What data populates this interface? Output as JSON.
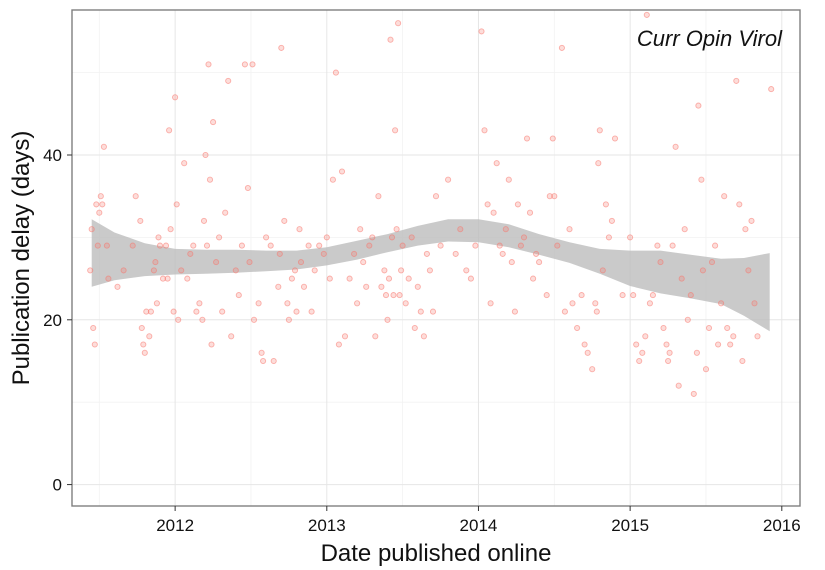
{
  "chart_data": {
    "type": "scatter",
    "annotation": "Curr Opin Virol",
    "xlabel": "Date published online",
    "ylabel": "Publication delay (days)",
    "xlim": [
      2011.32,
      2016.12
    ],
    "ylim": [
      -2.6,
      57.6
    ],
    "x_ticks": [
      2012,
      2013,
      2014,
      2015,
      2016
    ],
    "y_ticks": [
      0,
      20,
      40
    ],
    "grid": true,
    "point_color": "#f8766d",
    "band_color": "#bdbdbd",
    "smooth_band": [
      {
        "x": 2011.45,
        "lo": 24.0,
        "hi": 32.2
      },
      {
        "x": 2011.6,
        "lo": 24.8,
        "hi": 30.6
      },
      {
        "x": 2011.8,
        "lo": 25.3,
        "hi": 29.3
      },
      {
        "x": 2012.0,
        "lo": 25.5,
        "hi": 28.6
      },
      {
        "x": 2012.2,
        "lo": 25.6,
        "hi": 28.5
      },
      {
        "x": 2012.4,
        "lo": 25.7,
        "hi": 28.5
      },
      {
        "x": 2012.6,
        "lo": 25.9,
        "hi": 28.4
      },
      {
        "x": 2012.8,
        "lo": 26.1,
        "hi": 28.4
      },
      {
        "x": 2013.0,
        "lo": 26.6,
        "hi": 28.8
      },
      {
        "x": 2013.2,
        "lo": 27.3,
        "hi": 29.6
      },
      {
        "x": 2013.4,
        "lo": 28.2,
        "hi": 30.4
      },
      {
        "x": 2013.6,
        "lo": 29.0,
        "hi": 31.4
      },
      {
        "x": 2013.8,
        "lo": 29.5,
        "hi": 32.2
      },
      {
        "x": 2014.0,
        "lo": 29.4,
        "hi": 32.2
      },
      {
        "x": 2014.2,
        "lo": 28.8,
        "hi": 31.6
      },
      {
        "x": 2014.4,
        "lo": 27.9,
        "hi": 30.4
      },
      {
        "x": 2014.6,
        "lo": 26.9,
        "hi": 29.4
      },
      {
        "x": 2014.8,
        "lo": 25.6,
        "hi": 28.6
      },
      {
        "x": 2015.0,
        "lo": 24.1,
        "hi": 28.4
      },
      {
        "x": 2015.2,
        "lo": 23.2,
        "hi": 28.4
      },
      {
        "x": 2015.4,
        "lo": 22.6,
        "hi": 27.9
      },
      {
        "x": 2015.6,
        "lo": 21.9,
        "hi": 27.4
      },
      {
        "x": 2015.75,
        "lo": 20.5,
        "hi": 27.5
      },
      {
        "x": 2015.92,
        "lo": 18.6,
        "hi": 28.1
      }
    ],
    "points": [
      [
        2011.44,
        26
      ],
      [
        2011.45,
        31
      ],
      [
        2011.46,
        19
      ],
      [
        2011.47,
        17
      ],
      [
        2011.48,
        34
      ],
      [
        2011.49,
        29
      ],
      [
        2011.5,
        33
      ],
      [
        2011.51,
        35
      ],
      [
        2011.52,
        34
      ],
      [
        2011.53,
        41
      ],
      [
        2011.55,
        29
      ],
      [
        2011.56,
        25
      ],
      [
        2011.62,
        24
      ],
      [
        2011.66,
        26
      ],
      [
        2011.72,
        29
      ],
      [
        2011.74,
        35
      ],
      [
        2011.77,
        32
      ],
      [
        2011.78,
        19
      ],
      [
        2011.79,
        17
      ],
      [
        2011.8,
        16
      ],
      [
        2011.81,
        21
      ],
      [
        2011.83,
        18
      ],
      [
        2011.84,
        21
      ],
      [
        2011.86,
        26
      ],
      [
        2011.87,
        27
      ],
      [
        2011.88,
        22
      ],
      [
        2011.89,
        30
      ],
      [
        2011.9,
        29
      ],
      [
        2011.92,
        25
      ],
      [
        2011.94,
        29
      ],
      [
        2011.95,
        25
      ],
      [
        2011.96,
        43
      ],
      [
        2011.97,
        31
      ],
      [
        2011.99,
        21
      ],
      [
        2012.0,
        47
      ],
      [
        2012.01,
        34
      ],
      [
        2012.02,
        20
      ],
      [
        2012.04,
        26
      ],
      [
        2012.06,
        39
      ],
      [
        2012.08,
        25
      ],
      [
        2012.1,
        28
      ],
      [
        2012.12,
        29
      ],
      [
        2012.14,
        21
      ],
      [
        2012.16,
        22
      ],
      [
        2012.18,
        20
      ],
      [
        2012.19,
        32
      ],
      [
        2012.2,
        40
      ],
      [
        2012.21,
        29
      ],
      [
        2012.22,
        51
      ],
      [
        2012.23,
        37
      ],
      [
        2012.24,
        17
      ],
      [
        2012.25,
        44
      ],
      [
        2012.27,
        27
      ],
      [
        2012.29,
        30
      ],
      [
        2012.31,
        21
      ],
      [
        2012.33,
        33
      ],
      [
        2012.35,
        49
      ],
      [
        2012.37,
        18
      ],
      [
        2012.4,
        26
      ],
      [
        2012.42,
        23
      ],
      [
        2012.44,
        29
      ],
      [
        2012.46,
        51
      ],
      [
        2012.48,
        36
      ],
      [
        2012.49,
        27
      ],
      [
        2012.51,
        51
      ],
      [
        2012.52,
        20
      ],
      [
        2012.55,
        22
      ],
      [
        2012.57,
        16
      ],
      [
        2012.58,
        15
      ],
      [
        2012.6,
        30
      ],
      [
        2012.63,
        29
      ],
      [
        2012.65,
        15
      ],
      [
        2012.68,
        24
      ],
      [
        2012.69,
        28
      ],
      [
        2012.7,
        53
      ],
      [
        2012.72,
        32
      ],
      [
        2012.74,
        22
      ],
      [
        2012.75,
        20
      ],
      [
        2012.77,
        25
      ],
      [
        2012.79,
        26
      ],
      [
        2012.8,
        21
      ],
      [
        2012.82,
        31
      ],
      [
        2012.83,
        27
      ],
      [
        2012.85,
        24
      ],
      [
        2012.88,
        29
      ],
      [
        2012.9,
        21
      ],
      [
        2012.92,
        26
      ],
      [
        2012.95,
        29
      ],
      [
        2012.98,
        28
      ],
      [
        2013.0,
        30
      ],
      [
        2013.02,
        25
      ],
      [
        2013.04,
        37
      ],
      [
        2013.06,
        50
      ],
      [
        2013.08,
        17
      ],
      [
        2013.1,
        38
      ],
      [
        2013.12,
        18
      ],
      [
        2013.15,
        25
      ],
      [
        2013.18,
        28
      ],
      [
        2013.2,
        22
      ],
      [
        2013.22,
        31
      ],
      [
        2013.24,
        27
      ],
      [
        2013.26,
        24
      ],
      [
        2013.28,
        29
      ],
      [
        2013.3,
        30
      ],
      [
        2013.32,
        18
      ],
      [
        2013.34,
        35
      ],
      [
        2013.36,
        24
      ],
      [
        2013.38,
        26
      ],
      [
        2013.39,
        23
      ],
      [
        2013.4,
        20
      ],
      [
        2013.41,
        25
      ],
      [
        2013.42,
        54
      ],
      [
        2013.43,
        30
      ],
      [
        2013.44,
        23
      ],
      [
        2013.45,
        43
      ],
      [
        2013.46,
        31
      ],
      [
        2013.47,
        56
      ],
      [
        2013.48,
        23
      ],
      [
        2013.49,
        26
      ],
      [
        2013.5,
        29
      ],
      [
        2013.52,
        22
      ],
      [
        2013.54,
        25
      ],
      [
        2013.56,
        30
      ],
      [
        2013.58,
        19
      ],
      [
        2013.6,
        24
      ],
      [
        2013.62,
        21
      ],
      [
        2013.64,
        18
      ],
      [
        2013.66,
        28
      ],
      [
        2013.68,
        26
      ],
      [
        2013.7,
        21
      ],
      [
        2013.72,
        35
      ],
      [
        2013.75,
        29
      ],
      [
        2013.8,
        37
      ],
      [
        2013.85,
        28
      ],
      [
        2013.88,
        31
      ],
      [
        2013.92,
        26
      ],
      [
        2013.95,
        25
      ],
      [
        2013.98,
        29
      ],
      [
        2014.02,
        55
      ],
      [
        2014.04,
        43
      ],
      [
        2014.06,
        34
      ],
      [
        2014.08,
        22
      ],
      [
        2014.1,
        33
      ],
      [
        2014.12,
        39
      ],
      [
        2014.14,
        29
      ],
      [
        2014.16,
        28
      ],
      [
        2014.18,
        31
      ],
      [
        2014.2,
        37
      ],
      [
        2014.22,
        27
      ],
      [
        2014.24,
        21
      ],
      [
        2014.26,
        34
      ],
      [
        2014.28,
        29
      ],
      [
        2014.3,
        30
      ],
      [
        2014.32,
        42
      ],
      [
        2014.34,
        33
      ],
      [
        2014.36,
        25
      ],
      [
        2014.38,
        28
      ],
      [
        2014.4,
        27
      ],
      [
        2014.45,
        23
      ],
      [
        2014.47,
        35
      ],
      [
        2014.49,
        42
      ],
      [
        2014.5,
        35
      ],
      [
        2014.52,
        29
      ],
      [
        2014.55,
        53
      ],
      [
        2014.57,
        21
      ],
      [
        2014.6,
        31
      ],
      [
        2014.62,
        22
      ],
      [
        2014.65,
        19
      ],
      [
        2014.68,
        23
      ],
      [
        2014.7,
        17
      ],
      [
        2014.72,
        16
      ],
      [
        2014.75,
        14
      ],
      [
        2014.77,
        22
      ],
      [
        2014.78,
        21
      ],
      [
        2014.79,
        39
      ],
      [
        2014.8,
        43
      ],
      [
        2014.82,
        26
      ],
      [
        2014.84,
        34
      ],
      [
        2014.86,
        30
      ],
      [
        2014.88,
        32
      ],
      [
        2014.9,
        42
      ],
      [
        2014.95,
        23
      ],
      [
        2015.0,
        30
      ],
      [
        2015.02,
        23
      ],
      [
        2015.04,
        17
      ],
      [
        2015.06,
        15
      ],
      [
        2015.08,
        16
      ],
      [
        2015.1,
        18
      ],
      [
        2015.11,
        57
      ],
      [
        2015.13,
        22
      ],
      [
        2015.15,
        23
      ],
      [
        2015.18,
        29
      ],
      [
        2015.2,
        27
      ],
      [
        2015.22,
        19
      ],
      [
        2015.24,
        17
      ],
      [
        2015.25,
        15
      ],
      [
        2015.26,
        16
      ],
      [
        2015.28,
        29
      ],
      [
        2015.3,
        41
      ],
      [
        2015.32,
        12
      ],
      [
        2015.34,
        25
      ],
      [
        2015.36,
        31
      ],
      [
        2015.38,
        20
      ],
      [
        2015.4,
        23
      ],
      [
        2015.42,
        11
      ],
      [
        2015.44,
        16
      ],
      [
        2015.45,
        46
      ],
      [
        2015.47,
        37
      ],
      [
        2015.48,
        26
      ],
      [
        2015.5,
        14
      ],
      [
        2015.52,
        19
      ],
      [
        2015.54,
        27
      ],
      [
        2015.56,
        29
      ],
      [
        2015.58,
        17
      ],
      [
        2015.6,
        22
      ],
      [
        2015.62,
        35
      ],
      [
        2015.64,
        19
      ],
      [
        2015.66,
        17
      ],
      [
        2015.68,
        18
      ],
      [
        2015.7,
        49
      ],
      [
        2015.72,
        34
      ],
      [
        2015.74,
        15
      ],
      [
        2015.76,
        31
      ],
      [
        2015.78,
        26
      ],
      [
        2015.8,
        32
      ],
      [
        2015.82,
        22
      ],
      [
        2015.84,
        18
      ],
      [
        2015.93,
        48
      ]
    ]
  }
}
